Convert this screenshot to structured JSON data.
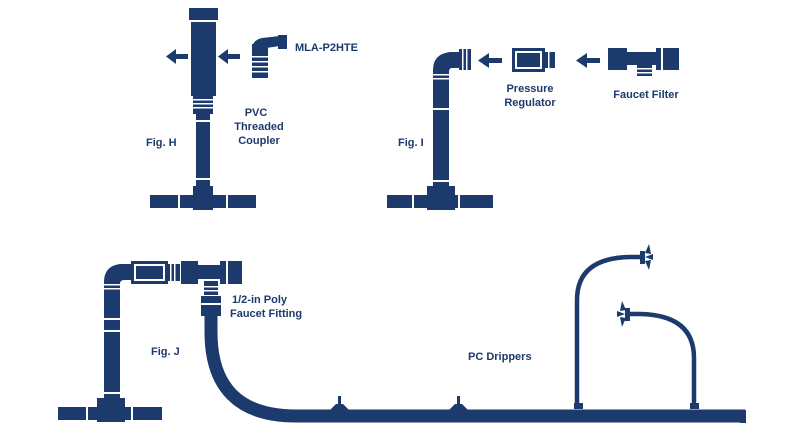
{
  "colors": {
    "navy": "#1c3a6b",
    "white": "#ffffff",
    "background": "#ffffff"
  },
  "labels": {
    "mla": "MLA-P2HTE",
    "pvc_line1": "PVC",
    "pvc_line2": "Threaded",
    "pvc_line3": "Coupler",
    "fig_h": "Fig. H",
    "fig_i": "Fig. I",
    "pressure_line1": "Pressure",
    "pressure_line2": "Regulator",
    "faucet_filter": "Faucet Filter",
    "fig_j": "Fig. J",
    "poly_line1": "1/2-in Poly",
    "poly_line2": "Faucet Fitting",
    "pc_drippers": "PC Drippers"
  }
}
